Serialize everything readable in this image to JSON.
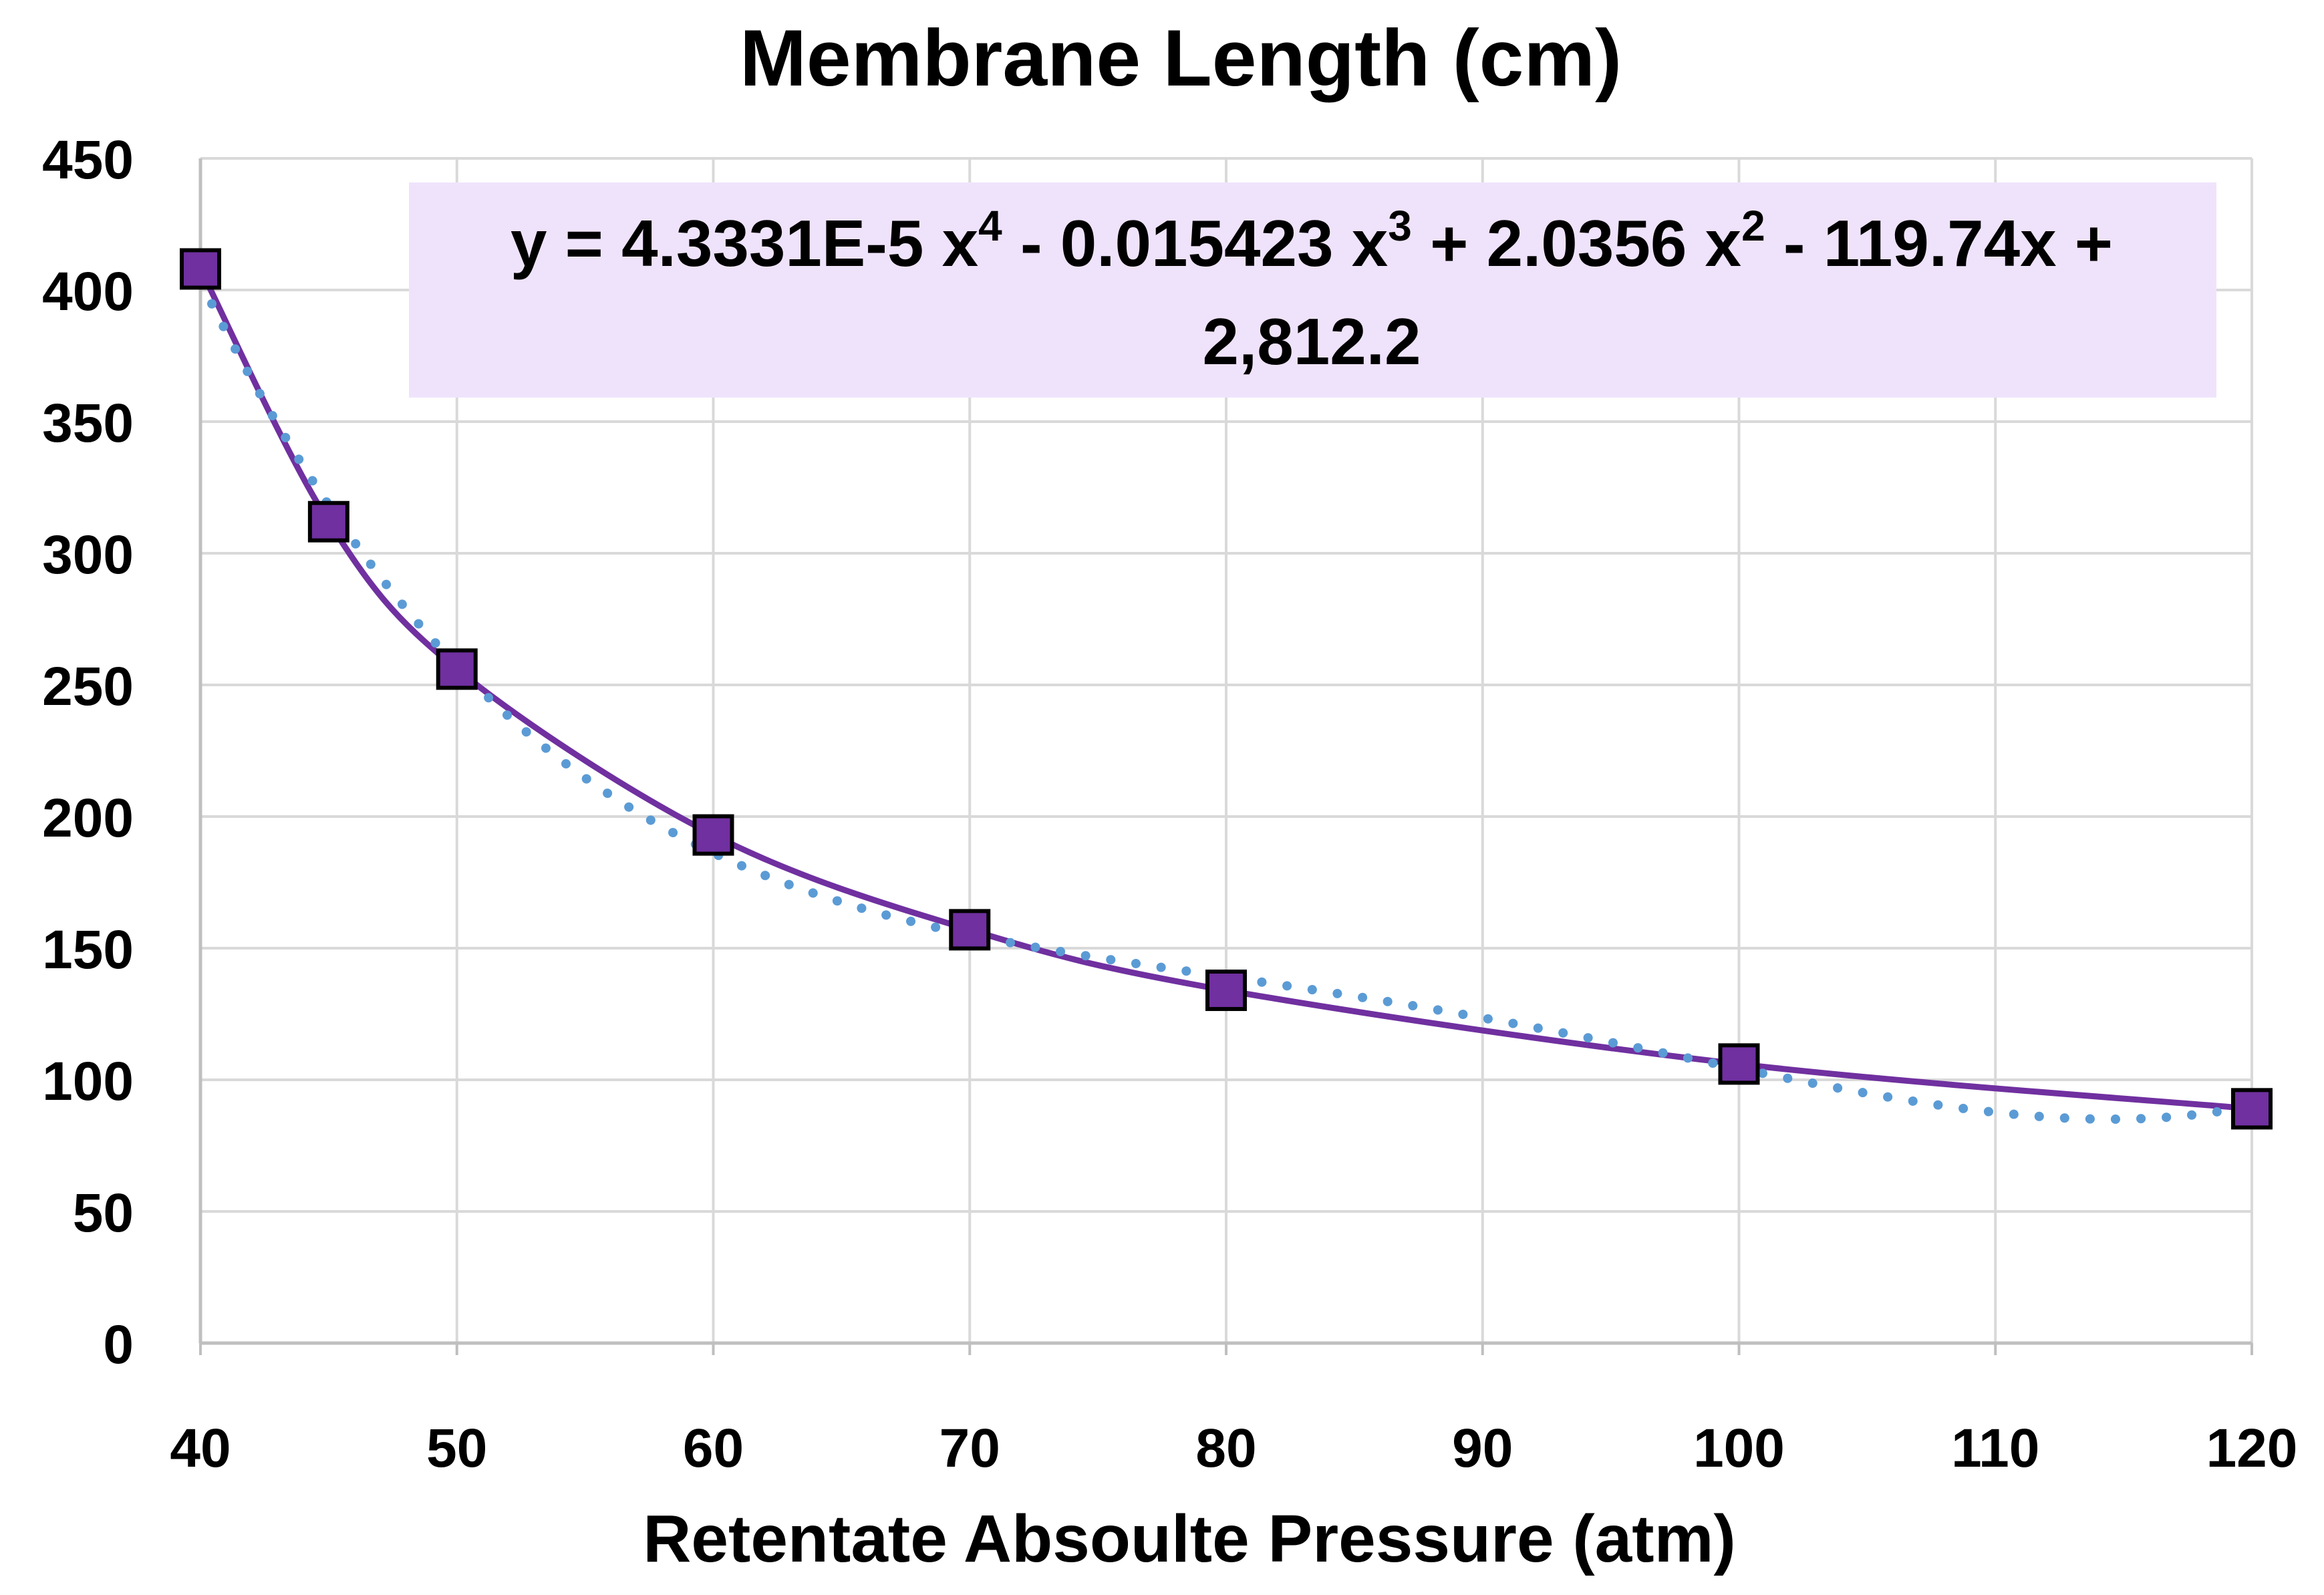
{
  "colors": {
    "background": "#ffffff",
    "grid": "#d9d9d9",
    "axis": "#bfbfbf",
    "series_line": "#7030a0",
    "marker_fill": "#7030a0",
    "marker_edge": "#000000",
    "trendline": "#5b9bd5",
    "equation_box": "#efe3fb"
  },
  "chart_data": {
    "type": "scatter",
    "title": "Membrane Length (cm)",
    "xlabel": "Retentate Absoulte Pressure (atm)",
    "ylabel": "",
    "xlim": [
      40,
      120
    ],
    "ylim": [
      0,
      450
    ],
    "x_ticks": [
      40,
      50,
      60,
      70,
      80,
      90,
      100,
      110,
      120
    ],
    "y_ticks": [
      0,
      50,
      100,
      150,
      200,
      250,
      300,
      350,
      400,
      450
    ],
    "grid": true,
    "series": [
      {
        "name": "Membrane Length",
        "style": "smooth-line-with-square-markers",
        "x": [
          40,
          45,
          50,
          60,
          70,
          80,
          100,
          120
        ],
        "y": [
          408,
          312,
          256,
          193,
          157,
          134,
          106,
          89
        ]
      }
    ],
    "trendline": {
      "type": "polynomial",
      "order": 4,
      "style": "dotted",
      "coefficients": [
        4.3331e-05,
        -0.015423,
        2.0356,
        -119.74,
        2812.2
      ],
      "x_range": [
        40,
        120
      ]
    },
    "equation": {
      "line1_parts": [
        {
          "text": "y = 4.3331E-5 x",
          "sup": false
        },
        {
          "text": "4",
          "sup": true
        },
        {
          "text": " - 0.015423 x",
          "sup": false
        },
        {
          "text": "3",
          "sup": true
        },
        {
          "text": " + 2.0356 x",
          "sup": false
        },
        {
          "text": "2",
          "sup": true
        },
        {
          "text": " - 119.74x +",
          "sup": false
        }
      ],
      "line2": "2,812.2",
      "position": "top-right"
    }
  }
}
